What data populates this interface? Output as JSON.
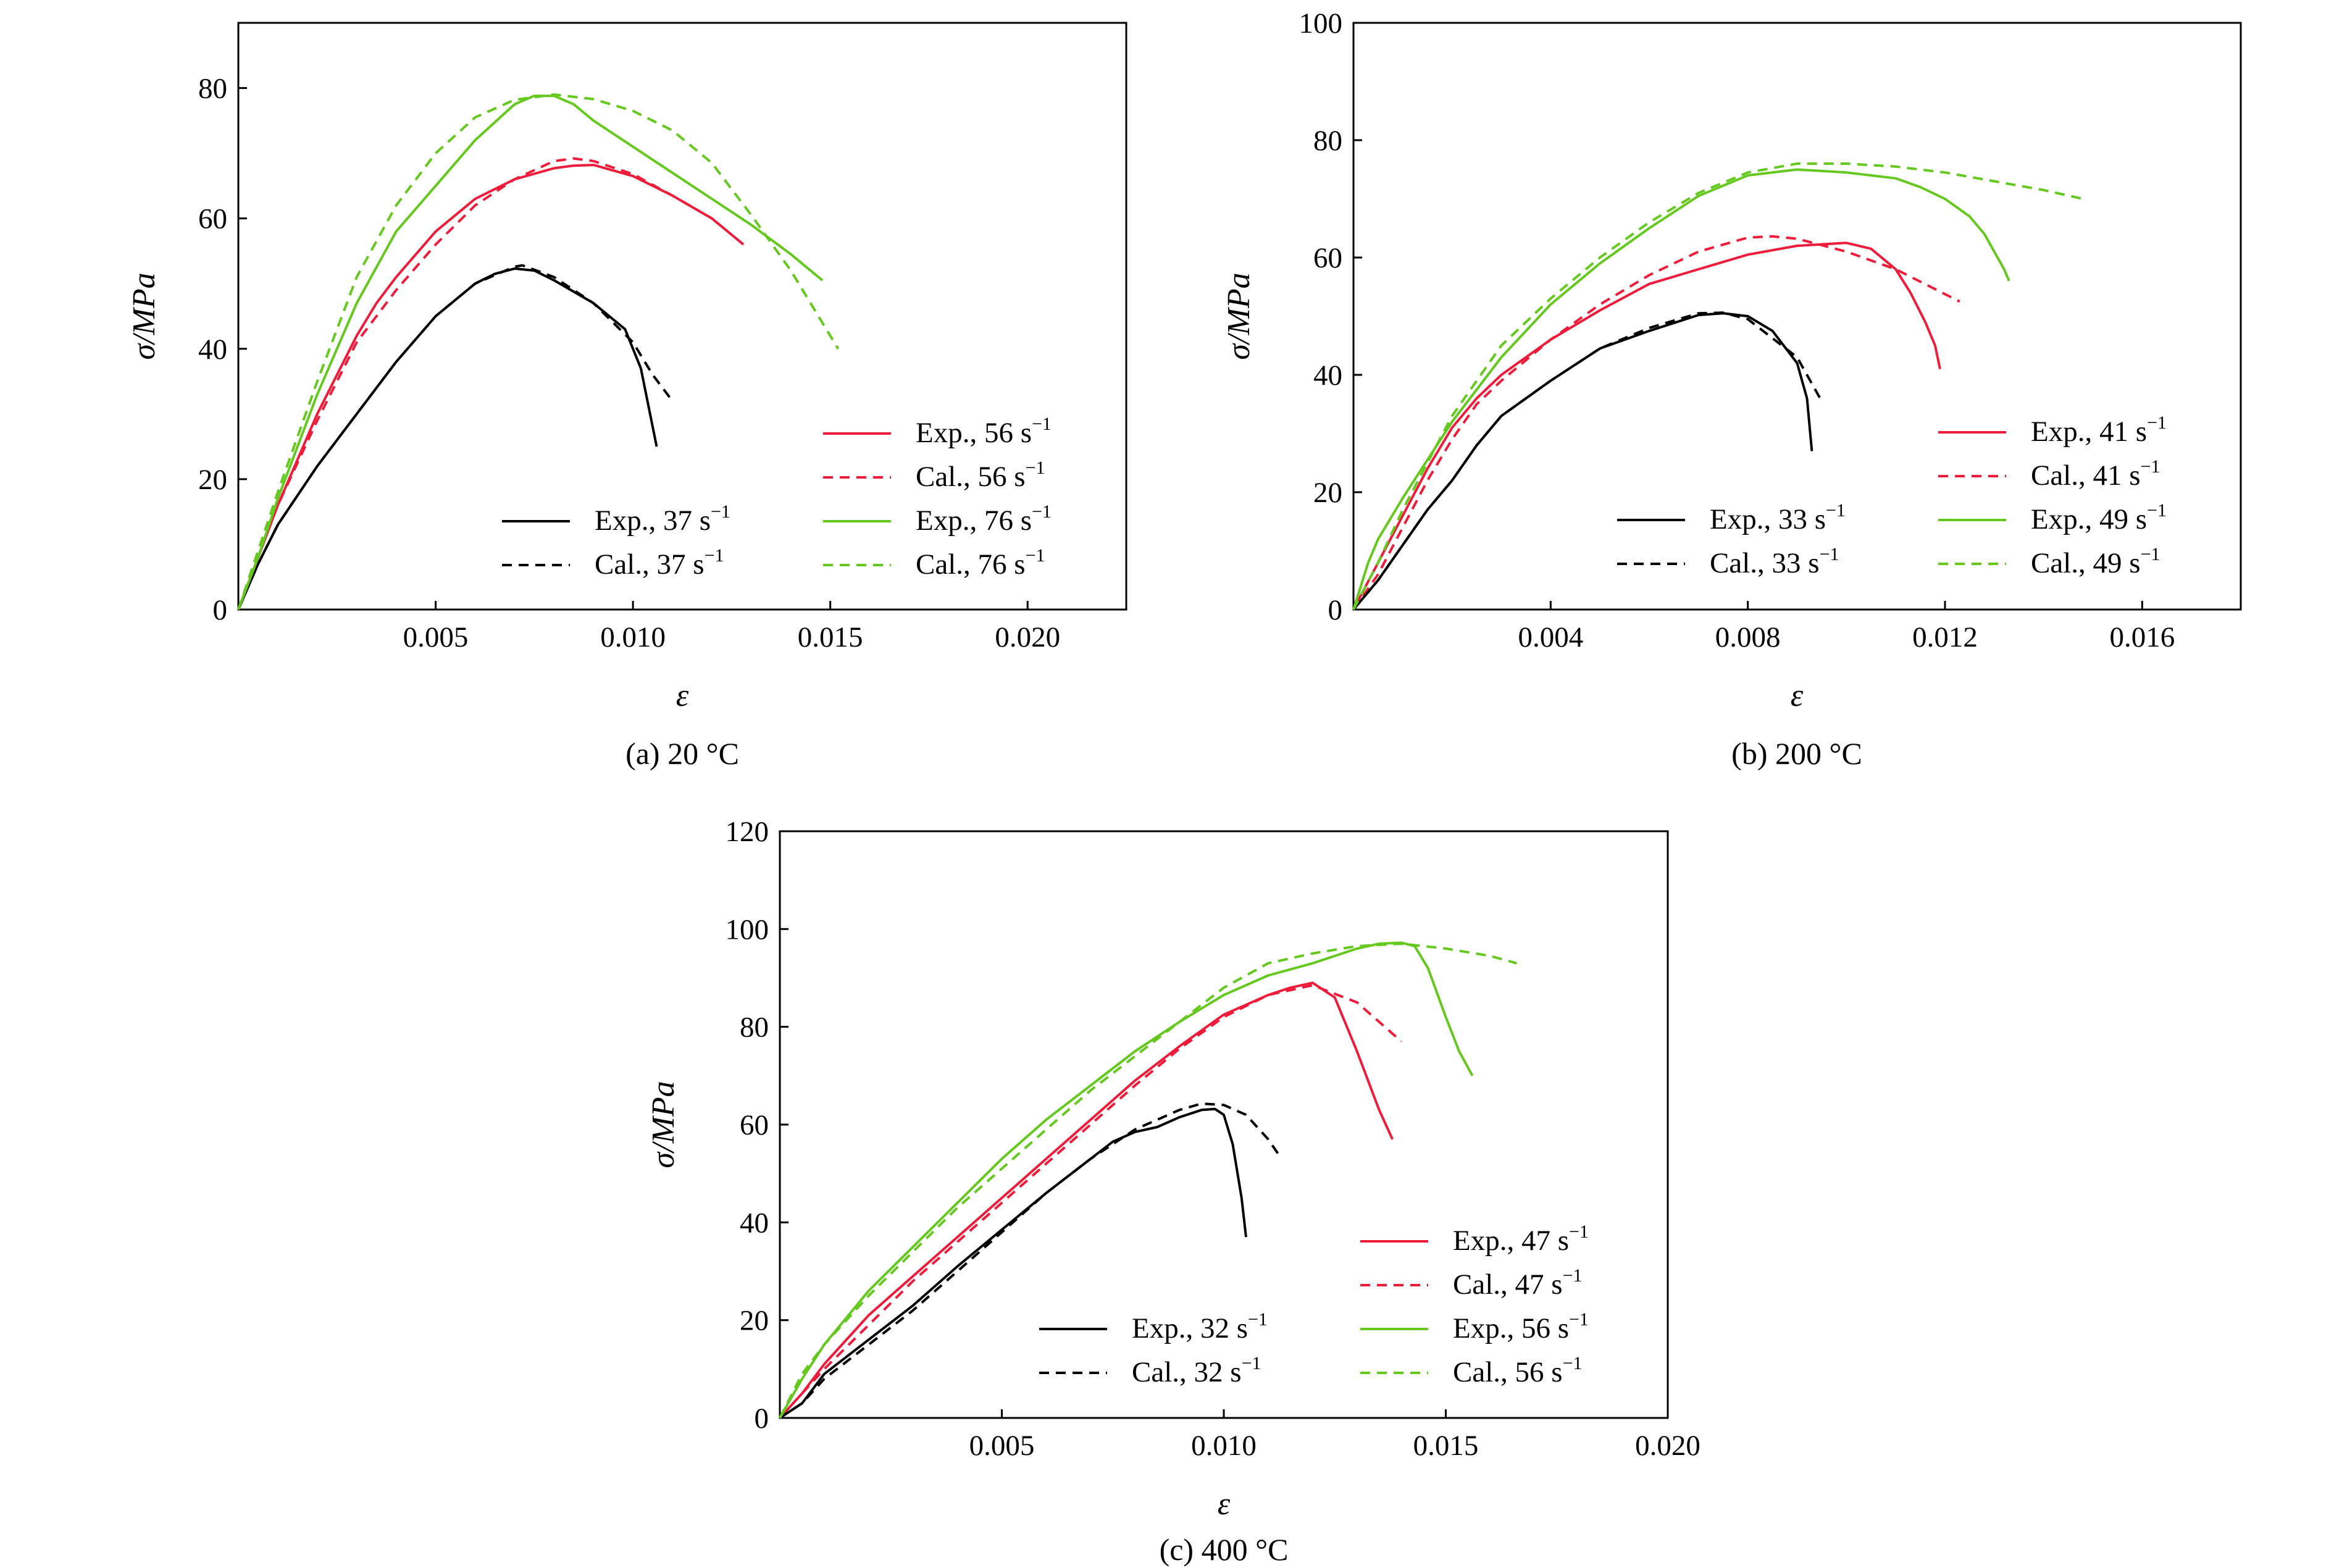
{
  "chart_data": [
    {
      "type": "line",
      "caption": "(a) 20 °C",
      "xlabel": "ε",
      "ylabel": "σ/MPa",
      "xlim": [
        0,
        0.0225
      ],
      "ylim": [
        0,
        90
      ],
      "xticks": [
        0.005,
        0.01,
        0.015,
        0.02
      ],
      "xtick_labels": [
        "0.005",
        "0.010",
        "0.015",
        "0.020"
      ],
      "yticks": [
        0,
        20,
        40,
        60,
        80
      ],
      "ytick_labels": [
        "0",
        "20",
        "40",
        "60",
        "80"
      ],
      "legend_cols": [
        {
          "position": "bottom-middle",
          "entries": [
            2,
            3
          ]
        },
        {
          "position": "bottom-right",
          "entries": [
            0,
            1,
            4,
            5
          ]
        }
      ],
      "series": [
        {
          "name": "Exp., 56 s",
          "unit": "−1",
          "color": "#ed1c3a",
          "dash": "solid",
          "x": [
            0,
            0.0005,
            0.001,
            0.002,
            0.003,
            0.0035,
            0.004,
            0.005,
            0.006,
            0.007,
            0.008,
            0.0085,
            0.009,
            0.01,
            0.011,
            0.012,
            0.0128
          ],
          "y": [
            0,
            8,
            16,
            30,
            42,
            47,
            51,
            58,
            63,
            66,
            67.7,
            68.1,
            68.2,
            66.5,
            63.5,
            60,
            56
          ]
        },
        {
          "name": "Cal., 56 s",
          "unit": "−1",
          "color": "#ed1c3a",
          "dash": "dashed",
          "x": [
            0,
            0.0005,
            0.001,
            0.002,
            0.003,
            0.0035,
            0.004,
            0.005,
            0.006,
            0.007,
            0.008,
            0.0085,
            0.009,
            0.01,
            0.011,
            0.012
          ],
          "y": [
            0,
            8,
            16,
            29,
            41,
            45,
            49,
            56,
            62,
            66,
            68.8,
            69.2,
            68.8,
            66.8,
            63.5,
            60
          ]
        },
        {
          "name": "Exp., 37 s",
          "unit": "−1",
          "color": "#000000",
          "dash": "solid",
          "x": [
            0,
            0.0005,
            0.001,
            0.002,
            0.003,
            0.004,
            0.005,
            0.006,
            0.0065,
            0.007,
            0.0075,
            0.008,
            0.009,
            0.0098,
            0.0102,
            0.0104,
            0.0106
          ],
          "y": [
            0,
            7,
            13,
            22,
            30,
            38,
            45,
            50,
            51.5,
            52.3,
            52,
            50.5,
            47,
            43,
            37,
            31,
            25
          ]
        },
        {
          "name": "Cal., 37 s",
          "unit": "−1",
          "color": "#000000",
          "dash": "dashed",
          "x": [
            0,
            0.0005,
            0.001,
            0.002,
            0.003,
            0.004,
            0.005,
            0.006,
            0.007,
            0.0072,
            0.008,
            0.009,
            0.01,
            0.0105,
            0.011
          ],
          "y": [
            0,
            7,
            13,
            22,
            30,
            38,
            45,
            50,
            52.6,
            52.8,
            51,
            47,
            41,
            36,
            32
          ]
        },
        {
          "name": "Exp., 76 s",
          "unit": "−1",
          "color": "#64c81e",
          "dash": "solid",
          "x": [
            0,
            0.0005,
            0.001,
            0.002,
            0.003,
            0.004,
            0.005,
            0.006,
            0.007,
            0.0075,
            0.008,
            0.0085,
            0.009,
            0.01,
            0.011,
            0.012,
            0.013,
            0.014,
            0.0148
          ],
          "y": [
            0,
            8,
            17,
            33,
            47,
            58,
            65,
            72,
            77.5,
            78.8,
            78.8,
            77.5,
            75,
            71,
            67,
            63,
            59,
            54.5,
            50.5
          ]
        },
        {
          "name": "Cal., 76 s",
          "unit": "−1",
          "color": "#64c81e",
          "dash": "dashed",
          "x": [
            0,
            0.0005,
            0.001,
            0.002,
            0.003,
            0.004,
            0.005,
            0.006,
            0.007,
            0.008,
            0.009,
            0.01,
            0.011,
            0.012,
            0.013,
            0.014,
            0.0152
          ],
          "y": [
            0,
            9,
            18,
            35,
            51,
            62,
            70,
            75.5,
            78.2,
            79,
            78.3,
            76.5,
            73.5,
            68.5,
            60.5,
            52,
            40
          ]
        }
      ]
    },
    {
      "type": "line",
      "caption": "(b) 200 °C",
      "xlabel": "ε",
      "ylabel": "σ/MPa",
      "xlim": [
        0,
        0.018
      ],
      "ylim": [
        0,
        100
      ],
      "xticks": [
        0.004,
        0.008,
        0.012,
        0.016
      ],
      "xtick_labels": [
        "0.004",
        "0.008",
        "0.012",
        "0.016"
      ],
      "yticks": [
        0,
        20,
        40,
        60,
        80,
        100
      ],
      "ytick_labels": [
        "0",
        "20",
        "40",
        "60",
        "80",
        "100"
      ],
      "legend_cols": [
        {
          "position": "bottom-middle",
          "entries": [
            2,
            3
          ]
        },
        {
          "position": "bottom-right",
          "entries": [
            0,
            1,
            4,
            5
          ]
        }
      ],
      "series": [
        {
          "name": "Exp., 41 s",
          "unit": "−1",
          "color": "#ed1c3a",
          "dash": "solid",
          "x": [
            0,
            0.0005,
            0.001,
            0.0015,
            0.002,
            0.0025,
            0.003,
            0.004,
            0.005,
            0.006,
            0.007,
            0.008,
            0.009,
            0.01,
            0.0105,
            0.011,
            0.0113,
            0.0116,
            0.0118,
            0.0119
          ],
          "y": [
            0,
            8,
            16,
            24,
            31,
            36,
            40,
            46,
            51,
            55.5,
            58,
            60.5,
            62,
            62.5,
            61.5,
            58,
            54,
            49,
            45,
            41
          ]
        },
        {
          "name": "Cal., 41 s",
          "unit": "−1",
          "color": "#ed1c3a",
          "dash": "dashed",
          "x": [
            0,
            0.0005,
            0.001,
            0.0015,
            0.002,
            0.0025,
            0.003,
            0.004,
            0.005,
            0.006,
            0.007,
            0.008,
            0.0085,
            0.009,
            0.01,
            0.011,
            0.0123
          ],
          "y": [
            0,
            6,
            14,
            22,
            29,
            35,
            39,
            46,
            52,
            57,
            61,
            63.4,
            63.6,
            63.2,
            61,
            58,
            52.5
          ]
        },
        {
          "name": "Exp., 33 s",
          "unit": "−1",
          "color": "#000000",
          "dash": "solid",
          "x": [
            0,
            0.0005,
            0.001,
            0.0015,
            0.002,
            0.0025,
            0.003,
            0.0035,
            0.004,
            0.005,
            0.006,
            0.007,
            0.0075,
            0.008,
            0.0085,
            0.009,
            0.0092,
            0.0093
          ],
          "y": [
            0,
            5,
            11,
            17,
            22,
            28,
            33,
            36,
            39,
            44.5,
            47.5,
            50.2,
            50.5,
            50,
            47.5,
            42,
            36,
            27
          ]
        },
        {
          "name": "Cal., 33 s",
          "unit": "−1",
          "color": "#000000",
          "dash": "dashed",
          "x": [
            0,
            0.0005,
            0.001,
            0.0015,
            0.002,
            0.0025,
            0.003,
            0.0035,
            0.004,
            0.005,
            0.006,
            0.007,
            0.0075,
            0.008,
            0.009,
            0.0095
          ],
          "y": [
            0,
            5,
            11,
            17,
            22,
            28,
            33,
            36,
            39,
            44.5,
            48,
            50.5,
            50.6,
            49.5,
            43,
            35.5
          ]
        },
        {
          "name": "Exp., 49 s",
          "unit": "−1",
          "color": "#64c81e",
          "dash": "solid",
          "x": [
            0,
            0.0003,
            0.0005,
            0.001,
            0.002,
            0.003,
            0.004,
            0.005,
            0.006,
            0.007,
            0.008,
            0.009,
            0.01,
            0.011,
            0.0115,
            0.012,
            0.0125,
            0.0128,
            0.013,
            0.0132,
            0.0133
          ],
          "y": [
            0,
            8,
            12,
            19,
            32,
            43,
            52,
            59,
            65,
            70.5,
            74,
            75,
            74.5,
            73.5,
            72,
            70,
            67,
            64,
            61,
            58,
            56
          ]
        },
        {
          "name": "Cal., 49 s",
          "unit": "−1",
          "color": "#64c81e",
          "dash": "dashed",
          "x": [
            0,
            0.0005,
            0.001,
            0.002,
            0.003,
            0.004,
            0.005,
            0.006,
            0.007,
            0.008,
            0.009,
            0.01,
            0.011,
            0.012,
            0.013,
            0.014,
            0.0148
          ],
          "y": [
            0,
            8,
            17,
            33,
            45,
            53,
            60,
            66,
            71,
            74.5,
            76,
            76,
            75.5,
            74.5,
            73,
            71.5,
            70
          ]
        }
      ]
    },
    {
      "type": "line",
      "caption": "(c) 400 °C",
      "xlabel": "ε",
      "ylabel": "σ/MPa",
      "xlim": [
        0,
        0.02
      ],
      "ylim": [
        0,
        120
      ],
      "xticks": [
        0.005,
        0.01,
        0.015,
        0.02
      ],
      "xtick_labels": [
        "0.005",
        "0.010",
        "0.015",
        "0.020"
      ],
      "yticks": [
        0,
        20,
        40,
        60,
        80,
        100,
        120
      ],
      "ytick_labels": [
        "0",
        "20",
        "40",
        "60",
        "80",
        "100",
        "120"
      ],
      "legend_cols": [
        {
          "position": "bottom-middle",
          "entries": [
            2,
            3
          ]
        },
        {
          "position": "bottom-right",
          "entries": [
            0,
            1,
            4,
            5
          ]
        }
      ],
      "series": [
        {
          "name": "Exp., 47 s",
          "unit": "−1",
          "color": "#ed1c3a",
          "dash": "solid",
          "x": [
            0,
            0.0005,
            0.001,
            0.002,
            0.003,
            0.004,
            0.005,
            0.006,
            0.007,
            0.008,
            0.009,
            0.01,
            0.011,
            0.0115,
            0.012,
            0.0125,
            0.013,
            0.0135,
            0.0138
          ],
          "y": [
            0,
            5,
            11,
            21,
            29,
            37,
            45,
            53,
            61,
            69,
            76,
            82.5,
            86.5,
            88,
            89,
            86,
            75,
            63,
            57
          ]
        },
        {
          "name": "Cal., 47 s",
          "unit": "−1",
          "color": "#ed1c3a",
          "dash": "dashed",
          "x": [
            0,
            0.0005,
            0.001,
            0.002,
            0.003,
            0.004,
            0.005,
            0.006,
            0.007,
            0.008,
            0.009,
            0.01,
            0.011,
            0.012,
            0.013,
            0.014
          ],
          "y": [
            0,
            5,
            10,
            19,
            28,
            36,
            44,
            52,
            60,
            68,
            75.5,
            82,
            86.5,
            88.5,
            85,
            77
          ]
        },
        {
          "name": "Exp., 32 s",
          "unit": "−1",
          "color": "#000000",
          "dash": "solid",
          "x": [
            0,
            0.0005,
            0.001,
            0.002,
            0.003,
            0.004,
            0.005,
            0.006,
            0.007,
            0.0075,
            0.008,
            0.0085,
            0.009,
            0.0095,
            0.0098,
            0.01,
            0.0102,
            0.0104,
            0.0105
          ],
          "y": [
            0,
            3,
            9,
            16,
            23,
            31,
            38.5,
            46,
            53,
            56.5,
            58.5,
            59.5,
            61.5,
            63,
            63.2,
            62,
            56,
            45,
            37
          ]
        },
        {
          "name": "Cal., 32 s",
          "unit": "−1",
          "color": "#000000",
          "dash": "dashed",
          "x": [
            0,
            0.0005,
            0.001,
            0.002,
            0.003,
            0.004,
            0.005,
            0.006,
            0.007,
            0.008,
            0.009,
            0.0095,
            0.01,
            0.0105,
            0.011,
            0.0113
          ],
          "y": [
            0,
            3,
            8,
            15,
            22,
            30,
            38,
            46,
            53,
            59,
            63,
            64.3,
            64,
            62,
            57,
            53
          ]
        },
        {
          "name": "Exp., 56 s",
          "unit": "−1",
          "color": "#64c81e",
          "dash": "solid",
          "x": [
            0,
            0.0005,
            0.001,
            0.002,
            0.003,
            0.004,
            0.005,
            0.006,
            0.007,
            0.008,
            0.009,
            0.01,
            0.011,
            0.012,
            0.013,
            0.0135,
            0.014,
            0.0143,
            0.0146,
            0.015,
            0.0153,
            0.0156
          ],
          "y": [
            0,
            8,
            15,
            26,
            35,
            44,
            53,
            61,
            68,
            75,
            81,
            86.5,
            90.5,
            93,
            96,
            97,
            97.2,
            96.5,
            92,
            82,
            75,
            70
          ]
        },
        {
          "name": "Cal., 56 s",
          "unit": "−1",
          "color": "#64c81e",
          "dash": "dashed",
          "x": [
            0,
            0.0005,
            0.001,
            0.002,
            0.003,
            0.004,
            0.005,
            0.006,
            0.007,
            0.008,
            0.009,
            0.01,
            0.011,
            0.012,
            0.013,
            0.014,
            0.015,
            0.016,
            0.0166
          ],
          "y": [
            0,
            9,
            15,
            25,
            34,
            43,
            51,
            59,
            67,
            74,
            81,
            88,
            93,
            95,
            96.5,
            97,
            96,
            94.5,
            93
          ]
        }
      ]
    }
  ]
}
